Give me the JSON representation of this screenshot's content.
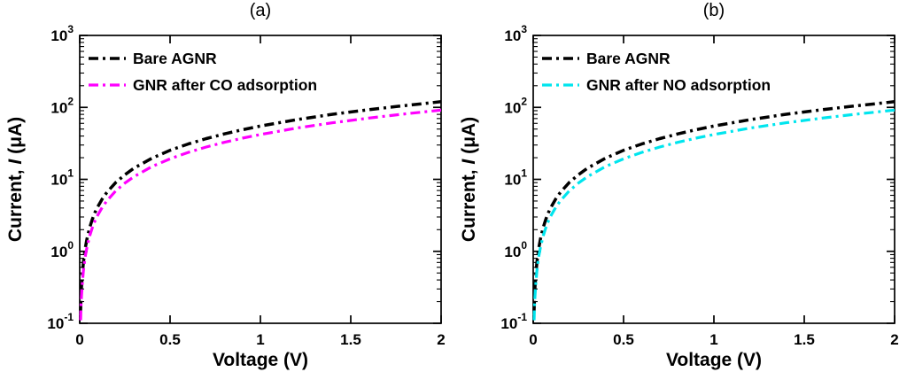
{
  "figure": {
    "background": "#ffffff",
    "panel_labels": [
      "(a)",
      "(b)"
    ]
  },
  "chart_data": [
    {
      "type": "line",
      "title": "(a)",
      "xlabel": "Voltage (V)",
      "ylabel": "Current, I (μA)",
      "ylabel_parts": {
        "prefix": "Current, ",
        "italic": "I",
        "suffix": " (μA)"
      },
      "x_axis": {
        "min": 0,
        "max": 2,
        "ticks": [
          0,
          0.5,
          1,
          1.5,
          2
        ],
        "tick_labels": [
          "0",
          "0.5",
          "1",
          "1.5",
          "2"
        ]
      },
      "y_axis": {
        "scale": "log",
        "min_exp": -1,
        "max_exp": 3
      },
      "legend": {
        "position": "top-left",
        "box": false
      },
      "grid": false,
      "x": [
        0.005,
        0.0075,
        0.01,
        0.015,
        0.02,
        0.03,
        0.04,
        0.055,
        0.07,
        0.085,
        0.1,
        0.125,
        0.15,
        0.2,
        0.25,
        0.3,
        0.4,
        0.5,
        0.6,
        0.7,
        0.8,
        0.9,
        1.0,
        1.2,
        1.4,
        1.6,
        1.8,
        2.0
      ],
      "series": [
        {
          "name": "Bare AGNR",
          "color": "#000000",
          "linestyle": "dash-dot",
          "linewidth": 3.5,
          "values": [
            0.15,
            0.23,
            0.32,
            0.5,
            0.69,
            1.08,
            1.49,
            2.13,
            2.8,
            3.48,
            4.17,
            5.36,
            6.57,
            9.07,
            11.6,
            14.3,
            19.7,
            25.3,
            31.0,
            36.8,
            42.8,
            48.9,
            55.0,
            67.5,
            80.2,
            93.1,
            106,
            120
          ]
        },
        {
          "name": "GNR after CO adsorption",
          "color": "#ff00ff",
          "linestyle": "dash-dot",
          "linewidth": 3.2,
          "values": [
            0.11,
            0.18,
            0.24,
            0.38,
            0.53,
            0.83,
            1.14,
            1.63,
            2.14,
            2.66,
            3.19,
            4.1,
            5.02,
            6.93,
            8.89,
            10.9,
            15.1,
            19.3,
            23.7,
            28.1,
            32.7,
            37.3,
            42.0,
            51.6,
            61.2,
            71.1,
            81.2,
            91.6
          ]
        }
      ]
    },
    {
      "type": "line",
      "title": "(b)",
      "xlabel": "Voltage (V)",
      "ylabel": "Current, I (μA)",
      "ylabel_parts": {
        "prefix": "Current, ",
        "italic": "I",
        "suffix": " (μA)"
      },
      "x_axis": {
        "min": 0,
        "max": 2,
        "ticks": [
          0,
          0.5,
          1,
          1.5,
          2
        ],
        "tick_labels": [
          "0",
          "0.5",
          "1",
          "1.5",
          "2"
        ]
      },
      "y_axis": {
        "scale": "log",
        "min_exp": -1,
        "max_exp": 3
      },
      "legend": {
        "position": "top-left",
        "box": false
      },
      "grid": false,
      "x": [
        0.005,
        0.0075,
        0.01,
        0.015,
        0.02,
        0.03,
        0.04,
        0.055,
        0.07,
        0.085,
        0.1,
        0.125,
        0.15,
        0.2,
        0.25,
        0.3,
        0.4,
        0.5,
        0.6,
        0.7,
        0.8,
        0.9,
        1.0,
        1.2,
        1.4,
        1.6,
        1.8,
        2.0
      ],
      "series": [
        {
          "name": "Bare AGNR",
          "color": "#000000",
          "linestyle": "dash-dot",
          "linewidth": 3.5,
          "values": [
            0.15,
            0.23,
            0.32,
            0.5,
            0.69,
            1.08,
            1.49,
            2.13,
            2.8,
            3.48,
            4.17,
            5.36,
            6.57,
            9.07,
            11.6,
            14.3,
            19.7,
            25.3,
            31.0,
            36.8,
            42.8,
            48.9,
            55.0,
            67.5,
            80.2,
            93.1,
            106,
            120
          ]
        },
        {
          "name": "GNR after NO adsorption",
          "color": "#00e5ee",
          "linestyle": "dash-dot",
          "linewidth": 3.2,
          "values": [
            0.11,
            0.18,
            0.24,
            0.38,
            0.53,
            0.83,
            1.14,
            1.63,
            2.14,
            2.66,
            3.19,
            4.1,
            5.02,
            6.93,
            8.89,
            10.9,
            15.1,
            19.3,
            23.7,
            28.1,
            32.7,
            37.3,
            42.0,
            51.6,
            61.2,
            71.1,
            81.2,
            91.6
          ]
        }
      ]
    }
  ]
}
